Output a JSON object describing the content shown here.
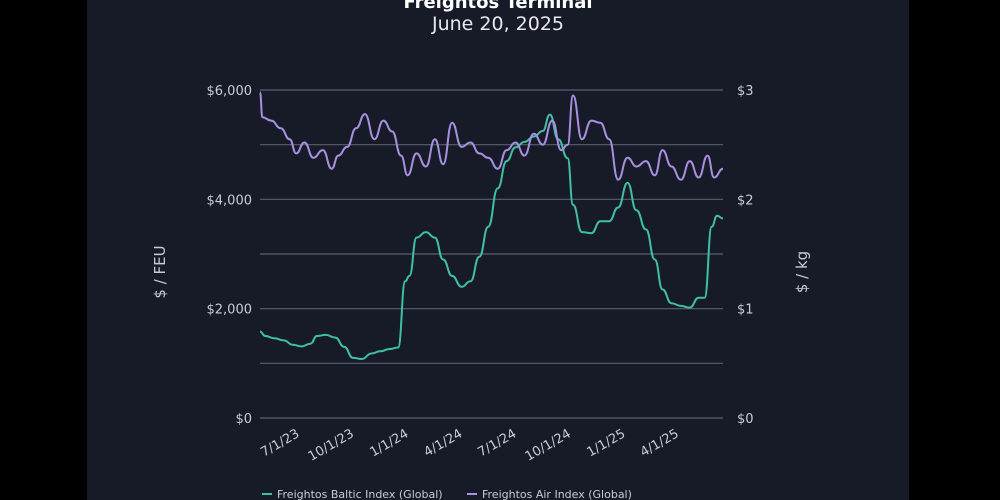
{
  "chart_data": {
    "type": "line",
    "title": "Freightos Terminal",
    "subtitle": "June 20, 2025",
    "ylabel_left": "$ / FEU",
    "ylabel_right": "$ / kg",
    "y_left": {
      "range": [
        0,
        6000
      ],
      "ticks": [
        0,
        2000,
        4000,
        6000
      ],
      "tick_labels": [
        "$0",
        "$2,000",
        "$4,000",
        "$6,000"
      ]
    },
    "y_right": {
      "range": [
        0,
        3
      ],
      "ticks": [
        0,
        1,
        2,
        3
      ],
      "tick_labels": [
        "$0",
        "$1",
        "$2",
        "$3"
      ]
    },
    "x": {
      "range": [
        "2023-05-01",
        "2025-06-20"
      ],
      "ticks": [
        "2023-07-01",
        "2023-10-01",
        "2024-01-01",
        "2024-04-01",
        "2024-07-01",
        "2024-10-01",
        "2025-01-01",
        "2025-04-01"
      ],
      "tick_labels": [
        "7/1/23",
        "10/1/23",
        "1/1/24",
        "4/1/24",
        "7/1/24",
        "10/1/24",
        "1/1/25",
        "4/1/25"
      ]
    },
    "grid": true,
    "legend_position": "bottom",
    "series": [
      {
        "name": "Freightos Baltic Index (Global)",
        "axis": "left",
        "color": "#3fbfa7",
        "points": [
          [
            "2023-05-01",
            1580
          ],
          [
            "2023-05-10",
            1500
          ],
          [
            "2023-05-25",
            1460
          ],
          [
            "2023-06-10",
            1420
          ],
          [
            "2023-06-25",
            1340
          ],
          [
            "2023-07-10",
            1310
          ],
          [
            "2023-07-25",
            1360
          ],
          [
            "2023-08-05",
            1500
          ],
          [
            "2023-08-20",
            1520
          ],
          [
            "2023-09-05",
            1470
          ],
          [
            "2023-09-20",
            1300
          ],
          [
            "2023-10-05",
            1100
          ],
          [
            "2023-10-20",
            1080
          ],
          [
            "2023-11-05",
            1180
          ],
          [
            "2023-11-20",
            1220
          ],
          [
            "2023-12-05",
            1260
          ],
          [
            "2023-12-20",
            1290
          ],
          [
            "2024-01-01",
            2500
          ],
          [
            "2024-01-08",
            2600
          ],
          [
            "2024-01-20",
            3300
          ],
          [
            "2024-02-05",
            3400
          ],
          [
            "2024-02-20",
            3300
          ],
          [
            "2024-03-05",
            2900
          ],
          [
            "2024-03-20",
            2600
          ],
          [
            "2024-04-05",
            2400
          ],
          [
            "2024-04-20",
            2500
          ],
          [
            "2024-05-05",
            2950
          ],
          [
            "2024-05-20",
            3500
          ],
          [
            "2024-06-05",
            4200
          ],
          [
            "2024-06-20",
            4700
          ],
          [
            "2024-07-05",
            4950
          ],
          [
            "2024-07-20",
            5050
          ],
          [
            "2024-08-05",
            5150
          ],
          [
            "2024-08-20",
            5250
          ],
          [
            "2024-09-01",
            5550
          ],
          [
            "2024-09-15",
            5100
          ],
          [
            "2024-10-01",
            4750
          ],
          [
            "2024-10-10",
            3900
          ],
          [
            "2024-10-25",
            3400
          ],
          [
            "2024-11-10",
            3380
          ],
          [
            "2024-11-25",
            3600
          ],
          [
            "2024-12-10",
            3600
          ],
          [
            "2024-12-25",
            3850
          ],
          [
            "2025-01-10",
            4300
          ],
          [
            "2025-01-25",
            3800
          ],
          [
            "2025-02-10",
            3450
          ],
          [
            "2025-02-25",
            2900
          ],
          [
            "2025-03-10",
            2350
          ],
          [
            "2025-03-25",
            2100
          ],
          [
            "2025-04-10",
            2050
          ],
          [
            "2025-04-25",
            2020
          ],
          [
            "2025-05-10",
            2200
          ],
          [
            "2025-05-20",
            2200
          ],
          [
            "2025-06-01",
            3500
          ],
          [
            "2025-06-10",
            3700
          ],
          [
            "2025-06-20",
            3650
          ]
        ]
      },
      {
        "name": "Freightos Air Index (Global)",
        "axis": "right",
        "color": "#a88fe0",
        "points": [
          [
            "2023-05-01",
            2.98
          ],
          [
            "2023-05-05",
            2.75
          ],
          [
            "2023-05-20",
            2.72
          ],
          [
            "2023-06-05",
            2.65
          ],
          [
            "2023-06-20",
            2.55
          ],
          [
            "2023-07-01",
            2.42
          ],
          [
            "2023-07-15",
            2.52
          ],
          [
            "2023-07-30",
            2.38
          ],
          [
            "2023-08-15",
            2.45
          ],
          [
            "2023-08-30",
            2.28
          ],
          [
            "2023-09-10",
            2.4
          ],
          [
            "2023-09-25",
            2.48
          ],
          [
            "2023-10-10",
            2.65
          ],
          [
            "2023-10-25",
            2.78
          ],
          [
            "2023-11-10",
            2.55
          ],
          [
            "2023-11-25",
            2.72
          ],
          [
            "2023-12-10",
            2.62
          ],
          [
            "2023-12-25",
            2.4
          ],
          [
            "2024-01-05",
            2.22
          ],
          [
            "2024-01-20",
            2.42
          ],
          [
            "2024-02-05",
            2.3
          ],
          [
            "2024-02-20",
            2.55
          ],
          [
            "2024-03-05",
            2.32
          ],
          [
            "2024-03-20",
            2.7
          ],
          [
            "2024-04-05",
            2.48
          ],
          [
            "2024-04-20",
            2.52
          ],
          [
            "2024-05-05",
            2.42
          ],
          [
            "2024-05-20",
            2.38
          ],
          [
            "2024-06-05",
            2.28
          ],
          [
            "2024-06-20",
            2.45
          ],
          [
            "2024-07-05",
            2.52
          ],
          [
            "2024-07-20",
            2.4
          ],
          [
            "2024-08-05",
            2.6
          ],
          [
            "2024-08-20",
            2.5
          ],
          [
            "2024-09-05",
            2.72
          ],
          [
            "2024-09-20",
            2.45
          ],
          [
            "2024-10-01",
            2.5
          ],
          [
            "2024-10-10",
            2.95
          ],
          [
            "2024-10-25",
            2.55
          ],
          [
            "2024-11-10",
            2.72
          ],
          [
            "2024-11-25",
            2.7
          ],
          [
            "2024-12-10",
            2.55
          ],
          [
            "2024-12-25",
            2.18
          ],
          [
            "2025-01-10",
            2.38
          ],
          [
            "2025-01-25",
            2.3
          ],
          [
            "2025-02-10",
            2.35
          ],
          [
            "2025-02-25",
            2.22
          ],
          [
            "2025-03-10",
            2.45
          ],
          [
            "2025-03-25",
            2.3
          ],
          [
            "2025-04-10",
            2.18
          ],
          [
            "2025-04-25",
            2.35
          ],
          [
            "2025-05-10",
            2.2
          ],
          [
            "2025-05-25",
            2.4
          ],
          [
            "2025-06-05",
            2.2
          ],
          [
            "2025-06-20",
            2.28
          ]
        ]
      }
    ]
  }
}
